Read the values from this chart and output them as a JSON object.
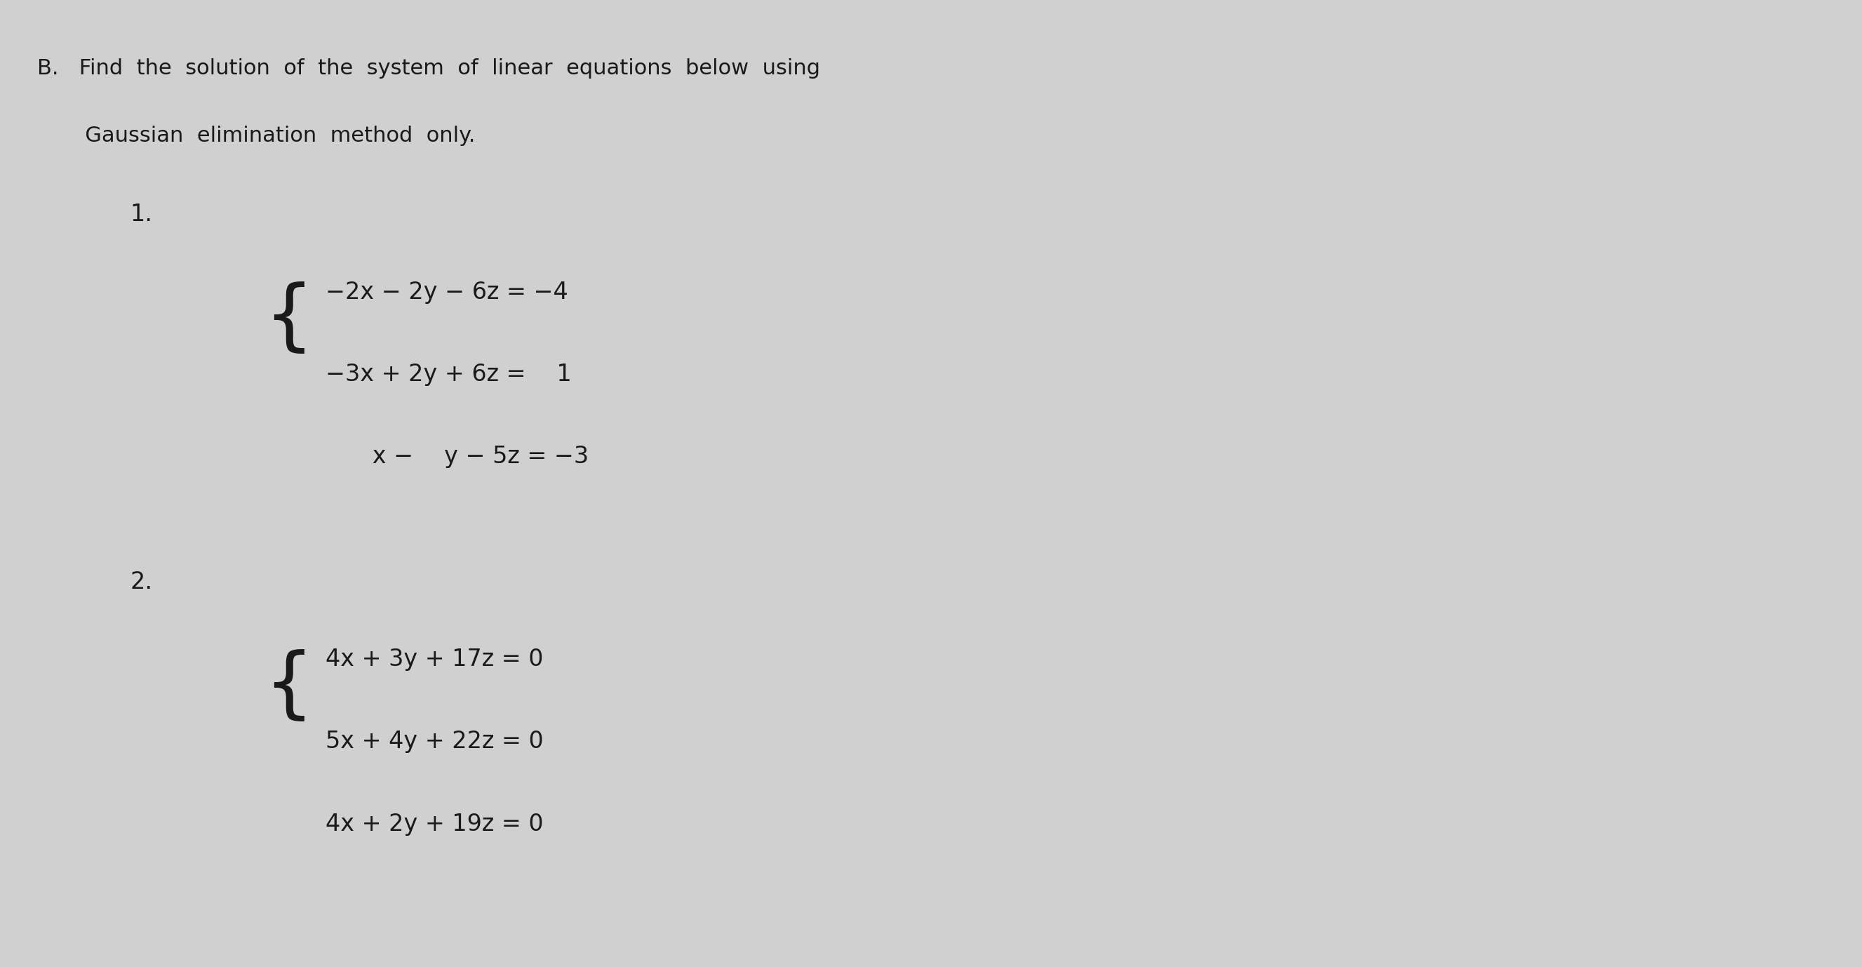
{
  "background_color": "#d0d0d0",
  "title_text": "B. Find the solution of the system of linear equations below using\n   Gaussian elimination method only.",
  "label1": "1.",
  "label2": "2.",
  "system1_lines": [
    "−2x − 2y − 6z = −4",
    "−3x + 2y + 6z =  1",
    "  x −  y − 5z = −3"
  ],
  "system2_lines": [
    "4x + 3y + 17z = 0",
    "5x + 4y + 22z = 0",
    "4x + 2y + 19z = 0"
  ],
  "text_color": "#1a1a1a",
  "font_size_title": 22,
  "font_size_label": 24,
  "font_size_eq": 24
}
